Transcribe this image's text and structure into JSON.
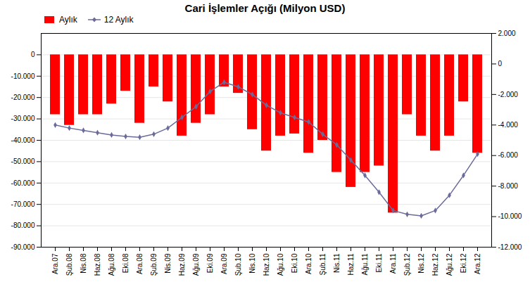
{
  "chart_data": {
    "type": "bar",
    "title": "Cari İşlemler Açığı (Milyon USD)",
    "categories": [
      "Ara.07",
      "Şub.08",
      "Nis.08",
      "Haz.08",
      "Ağu.08",
      "Eki.08",
      "Ara.08",
      "Şub.09",
      "Nis.09",
      "Haz.09",
      "Ağu.09",
      "Eki.09",
      "Ara.09",
      "Şub.10",
      "Nis.10",
      "Haz.10",
      "Ağu.10",
      "Eki.10",
      "Ara.10",
      "Şub.11",
      "Nis.11",
      "Haz.11",
      "Ağu.11",
      "Eki.11",
      "Ara.11",
      "Şub.12",
      "Nis.12",
      "Haz.12",
      "Ağu.12",
      "Eki.12",
      "Ara.12"
    ],
    "series": [
      {
        "name": "Aylık",
        "type": "bar",
        "color": "#FF0000",
        "values": [
          -28000,
          -33000,
          -28000,
          -28000,
          -23000,
          -17000,
          -32000,
          -15000,
          -22000,
          -38000,
          -32000,
          -28000,
          -15000,
          -18000,
          -35000,
          -45000,
          -38000,
          -37000,
          -46000,
          -40000,
          -55000,
          -62000,
          -55000,
          -52000,
          -74000,
          -28000,
          -38000,
          -45000,
          -38000,
          -22000,
          -46000
        ]
      },
      {
        "name": "12 Aylık",
        "type": "line",
        "color": "#6B6B9B",
        "marker": "diamond",
        "axis": "y2",
        "values": [
          -4000,
          -4200,
          -4350,
          -4500,
          -4650,
          -4750,
          -4800,
          -4600,
          -4200,
          -3500,
          -2800,
          -1800,
          -1200,
          -1500,
          -2000,
          -2700,
          -3200,
          -3500,
          -3800,
          -4600,
          -5300,
          -6300,
          -7300,
          -8400,
          -9600,
          -9850,
          -9950,
          -9600,
          -8600,
          -7300,
          -5900
        ]
      }
    ],
    "ylim": [
      -90000,
      10000
    ],
    "yticks": [
      0,
      {
        "value": -10000,
        "label": "-10.000"
      },
      {
        "value": -20000,
        "label": "-20.000"
      },
      {
        "value": -30000,
        "label": "-30.000"
      },
      {
        "value": -40000,
        "label": "-40.000"
      },
      {
        "value": -50000,
        "label": "-50.000"
      },
      {
        "value": -60000,
        "label": "-60.000"
      },
      {
        "value": -70000,
        "label": "-70.000"
      },
      {
        "value": -80000,
        "label": "-80.000"
      },
      {
        "value": -90000,
        "label": "-90.000"
      }
    ],
    "y2lim": [
      -12000,
      2000
    ],
    "y2ticks": [
      {
        "value": 2000,
        "label": "2.000"
      },
      0,
      {
        "value": -2000,
        "label": "-2.000"
      },
      {
        "value": -4000,
        "label": "-4.000"
      },
      {
        "value": -6000,
        "label": "-6.000"
      },
      {
        "value": -8000,
        "label": "-8.000"
      },
      {
        "value": -10000,
        "label": "-10.000"
      },
      {
        "value": -12000,
        "label": "-12.000"
      }
    ],
    "grid": true,
    "legend": "upper left"
  }
}
